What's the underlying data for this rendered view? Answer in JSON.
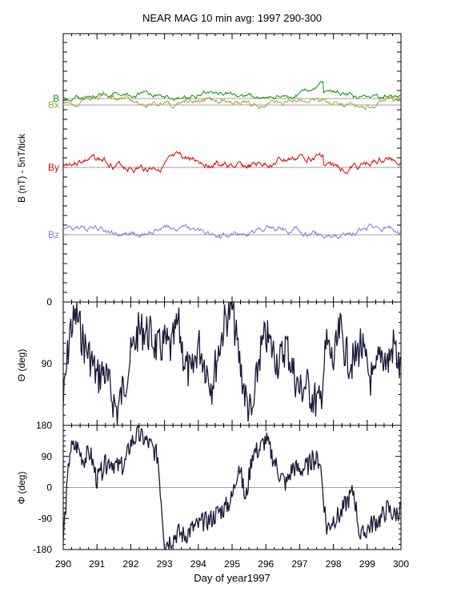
{
  "colors": {
    "axis": "#000000",
    "refline": "#808080",
    "dense": "#1a1a3a",
    "dense_light": "#7b7bd6"
  },
  "chart_data": [
    {
      "type": "line",
      "title": "NEAR MAG 10 min avg: 1997 290-300",
      "ylabel": "B  (nT) - 5nT/tick",
      "xlim": [
        290,
        300
      ],
      "series": [
        {
          "name": "B",
          "color": "#12960f",
          "offset": 254,
          "amp": 4,
          "seed": 1,
          "spike": 297.7
        },
        {
          "name": "Bx",
          "color": "#a9a43a",
          "offset": 246,
          "amp": 5,
          "seed": 2,
          "spike": 0
        },
        {
          "name": "By",
          "color": "#dd0000",
          "offset": 168,
          "amp": 6,
          "seed": 3,
          "spike": 297.7
        },
        {
          "name": "Bz",
          "color": "#7a7ae0",
          "offset": 84,
          "amp": 5,
          "seed": 4,
          "spike": 0
        }
      ]
    },
    {
      "type": "line",
      "ylabel": "Θ (deg)",
      "ylim": [
        0,
        180
      ],
      "yticks": [
        "0",
        "90"
      ],
      "x": [
        290,
        290.2,
        290.4,
        290.6,
        290.8,
        291,
        291.2,
        291.4,
        291.6,
        291.8,
        292,
        292.2,
        292.4,
        292.6,
        292.8,
        293,
        293.2,
        293.4,
        293.6,
        293.8,
        294,
        294.2,
        294.4,
        294.6,
        294.8,
        295,
        295.2,
        295.4,
        295.6,
        295.8,
        296,
        296.2,
        296.4,
        296.6,
        296.8,
        297,
        297.2,
        297.4,
        297.6,
        297.8,
        298,
        298.2,
        298.4,
        298.6,
        298.8,
        299,
        299.2,
        299.4,
        299.6,
        299.8,
        300
      ],
      "values": [
        150,
        40,
        20,
        60,
        80,
        110,
        100,
        130,
        160,
        120,
        80,
        45,
        40,
        50,
        70,
        60,
        70,
        30,
        90,
        110,
        60,
        90,
        120,
        70,
        25,
        10,
        80,
        140,
        170,
        80,
        50,
        70,
        90,
        60,
        100,
        130,
        120,
        140,
        150,
        60,
        90,
        40,
        80,
        90,
        60,
        100,
        120,
        70,
        90,
        60,
        110
      ]
    },
    {
      "type": "line",
      "ylabel": "Φ (deg)",
      "ylim": [
        -180,
        180
      ],
      "yticks": [
        "180",
        "90",
        "0",
        "-90",
        "-180"
      ],
      "x": [
        290,
        290.2,
        290.4,
        290.6,
        290.8,
        291,
        291.2,
        291.4,
        291.6,
        291.8,
        292,
        292.2,
        292.4,
        292.6,
        292.8,
        293,
        293.2,
        293.4,
        293.6,
        293.8,
        294,
        294.2,
        294.4,
        294.6,
        294.8,
        295,
        295.2,
        295.4,
        295.6,
        295.8,
        296,
        296.2,
        296.4,
        296.6,
        296.8,
        297,
        297.2,
        297.4,
        297.6,
        297.8,
        298,
        298.2,
        298.4,
        298.6,
        298.8,
        299,
        299.2,
        299.4,
        299.6,
        299.8,
        300
      ],
      "values": [
        -150,
        110,
        120,
        80,
        100,
        20,
        60,
        80,
        60,
        60,
        130,
        150,
        140,
        120,
        90,
        -160,
        -150,
        -130,
        -140,
        -120,
        -110,
        -100,
        -90,
        -70,
        -60,
        -30,
        70,
        -40,
        100,
        110,
        140,
        90,
        40,
        10,
        60,
        50,
        60,
        80,
        80,
        -120,
        -90,
        -80,
        -40,
        -10,
        -150,
        -120,
        -100,
        -90,
        -60,
        -80,
        -60
      ]
    }
  ],
  "xaxis": {
    "label": "Day of year1997",
    "ticks": [
      "290",
      "291",
      "292",
      "293",
      "294",
      "295",
      "296",
      "297",
      "298",
      "299",
      "300"
    ]
  }
}
